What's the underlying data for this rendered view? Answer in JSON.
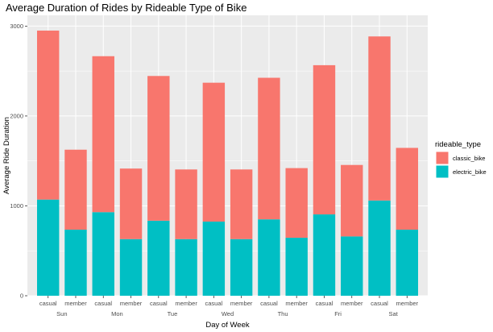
{
  "chart_data": {
    "type": "bar",
    "stacked": true,
    "title": "Average Duration of Rides by Rideable Type of Bike",
    "xlabel": "Day of Week",
    "ylabel": "Average Ride Duration",
    "ylim": [
      0,
      3120
    ],
    "yticks": [
      0,
      1000,
      2000,
      3000
    ],
    "grid": true,
    "legend_position": "right",
    "legend_title": "rideable_type",
    "groups": [
      "Sun",
      "Mon",
      "Tue",
      "Wed",
      "Thu",
      "Fri",
      "Sat"
    ],
    "categories": [
      "casual",
      "member",
      "casual",
      "member",
      "casual",
      "member",
      "casual",
      "member",
      "casual",
      "member",
      "casual",
      "member",
      "casual",
      "member"
    ],
    "series": [
      {
        "name": "electric_bike",
        "color": "#00BFC4",
        "values": [
          1070,
          735,
          930,
          630,
          835,
          630,
          825,
          630,
          850,
          645,
          905,
          660,
          1060,
          735
        ]
      },
      {
        "name": "classic_bike",
        "color": "#F8766D",
        "values": [
          1880,
          890,
          1735,
          785,
          1610,
          775,
          1545,
          775,
          1575,
          775,
          1660,
          795,
          1825,
          910
        ]
      }
    ],
    "totals": [
      2950,
      1625,
      2665,
      1415,
      2445,
      1405,
      2370,
      1405,
      2425,
      1420,
      2565,
      1455,
      2885,
      1645
    ]
  }
}
